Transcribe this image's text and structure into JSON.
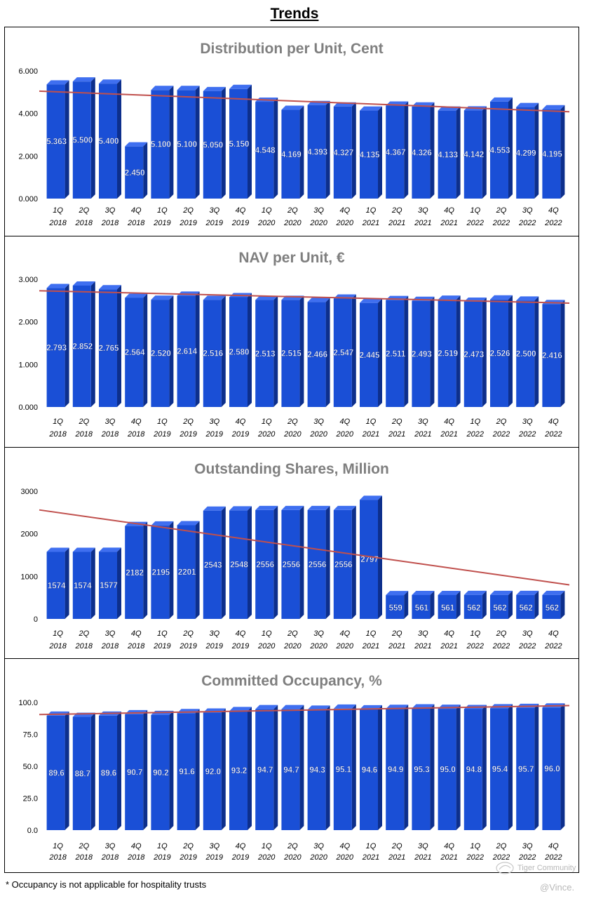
{
  "page": {
    "title": "Trends",
    "footnote": "* Occupancy is not applicable for hospitality trusts",
    "watermark_community": "Tiger Community",
    "watermark_user": "@Vince."
  },
  "colors": {
    "bar_front": "#1a4fd6",
    "bar_side": "#0d2f8c",
    "bar_top": "#3f6ff0",
    "trend": "#c0504d",
    "title": "#7f7f7f"
  },
  "chart_data": [
    {
      "type": "bar",
      "title": "Distribution per Unit, Cent",
      "categories": [
        "1Q 2018",
        "2Q 2018",
        "3Q 2018",
        "4Q 2018",
        "1Q 2019",
        "2Q 2019",
        "3Q 2019",
        "4Q 2019",
        "1Q 2020",
        "2Q 2020",
        "3Q 2020",
        "4Q 2020",
        "1Q 2021",
        "2Q 2021",
        "3Q 2021",
        "4Q 2021",
        "1Q 2022",
        "2Q 2022",
        "3Q 2022",
        "4Q 2022"
      ],
      "values": [
        5.363,
        5.5,
        5.4,
        2.45,
        5.1,
        5.1,
        5.05,
        5.15,
        4.548,
        4.169,
        4.393,
        4.327,
        4.135,
        4.367,
        4.326,
        4.133,
        4.142,
        4.553,
        4.299,
        4.195
      ],
      "value_labels": [
        "5.363",
        "5.500",
        "5.400",
        "2.450",
        "5.100",
        "5.100",
        "5.050",
        "5.150",
        "4.548",
        "4.169",
        "4.393",
        "4.327",
        "4.135",
        "4.367",
        "4.326",
        "4.133",
        "4.142",
        "4.553",
        "4.299",
        "4.195"
      ],
      "yticks": [
        "0.000",
        "2.000",
        "4.000",
        "6.000"
      ],
      "ylim": [
        0,
        6
      ],
      "trendline": [
        5.05,
        4.08
      ]
    },
    {
      "type": "bar",
      "title": "NAV per Unit, €",
      "categories": [
        "1Q 2018",
        "2Q 2018",
        "3Q 2018",
        "4Q 2018",
        "1Q 2019",
        "2Q 2019",
        "3Q 2019",
        "4Q 2019",
        "1Q 2020",
        "2Q 2020",
        "3Q 2020",
        "4Q 2020",
        "1Q 2021",
        "2Q 2021",
        "3Q 2021",
        "4Q 2021",
        "1Q 2022",
        "2Q 2022",
        "3Q 2022",
        "4Q 2022"
      ],
      "values": [
        2.793,
        2.852,
        2.765,
        2.564,
        2.52,
        2.614,
        2.516,
        2.58,
        2.513,
        2.515,
        2.466,
        2.547,
        2.445,
        2.511,
        2.493,
        2.519,
        2.473,
        2.526,
        2.5,
        2.416
      ],
      "value_labels": [
        "2.793",
        "2.852",
        "2.765",
        "2.564",
        "2.520",
        "2.614",
        "2.516",
        "2.580",
        "2.513",
        "2.515",
        "2.466",
        "2.547",
        "2.445",
        "2.511",
        "2.493",
        "2.519",
        "2.473",
        "2.526",
        "2.500",
        "2.416"
      ],
      "yticks": [
        "0.000",
        "1.000",
        "2.000",
        "3.000"
      ],
      "ylim": [
        0,
        3
      ],
      "trendline": [
        2.73,
        2.44
      ]
    },
    {
      "type": "bar",
      "title": "Outstanding Shares, Million",
      "categories": [
        "1Q 2018",
        "2Q 2018",
        "3Q 2018",
        "4Q 2018",
        "1Q 2019",
        "2Q 2019",
        "3Q 2019",
        "4Q 2019",
        "1Q 2020",
        "2Q 2020",
        "3Q 2020",
        "4Q 2020",
        "1Q 2021",
        "2Q 2021",
        "3Q 2021",
        "4Q 2021",
        "1Q 2022",
        "2Q 2022",
        "3Q 2022",
        "4Q 2022"
      ],
      "values": [
        1574,
        1574,
        1577,
        2182,
        2195,
        2201,
        2543,
        2548,
        2556,
        2556,
        2556,
        2556,
        2797,
        559,
        561,
        561,
        562,
        562,
        562,
        562
      ],
      "value_labels": [
        "1574",
        "1574",
        "1577",
        "2182",
        "2195",
        "2201",
        "2543",
        "2548",
        "2556",
        "2556",
        "2556",
        "2556",
        "2797",
        "559",
        "561",
        "561",
        "562",
        "562",
        "562",
        "562"
      ],
      "yticks": [
        "0",
        "1000",
        "2000",
        "3000"
      ],
      "ylim": [
        0,
        3000
      ],
      "trendline": [
        2560,
        800
      ]
    },
    {
      "type": "bar",
      "title": "Committed Occupancy, %",
      "categories": [
        "1Q 2018",
        "2Q 2018",
        "3Q 2018",
        "4Q 2018",
        "1Q 2019",
        "2Q 2019",
        "3Q 2019",
        "4Q 2019",
        "1Q 2020",
        "2Q 2020",
        "3Q 2020",
        "4Q 2020",
        "1Q 2021",
        "2Q 2021",
        "3Q 2021",
        "4Q 2021",
        "1Q 2022",
        "2Q 2022",
        "3Q 2022",
        "4Q 2022"
      ],
      "values": [
        89.6,
        88.7,
        89.6,
        90.7,
        90.2,
        91.6,
        92.0,
        93.2,
        94.7,
        94.7,
        94.3,
        95.1,
        94.6,
        94.9,
        95.3,
        95.0,
        94.8,
        95.4,
        95.7,
        96.0
      ],
      "value_labels": [
        "89.6",
        "88.7",
        "89.6",
        "90.7",
        "90.2",
        "91.6",
        "92.0",
        "93.2",
        "94.7",
        "94.7",
        "94.3",
        "95.1",
        "94.6",
        "94.9",
        "95.3",
        "95.0",
        "94.8",
        "95.4",
        "95.7",
        "96.0"
      ],
      "yticks": [
        "0.0",
        "25.0",
        "50.0",
        "75.0",
        "100.0"
      ],
      "ylim": [
        0,
        100
      ],
      "trendline": [
        90.5,
        97.5
      ]
    }
  ]
}
